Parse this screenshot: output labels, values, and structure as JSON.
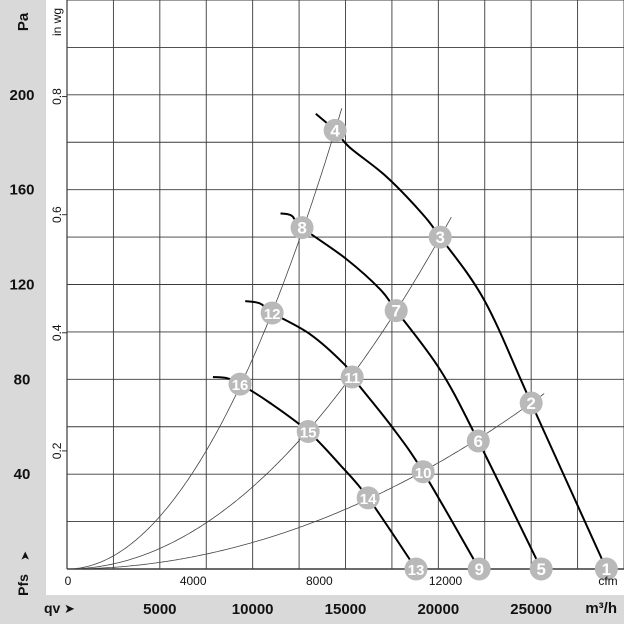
{
  "chart_data": {
    "type": "line",
    "title": "",
    "xlabel": "qv",
    "xunit": "m³/h",
    "ylabel": "Pfs",
    "yunit": "Pa",
    "secondary_x_unit": "cfm",
    "secondary_y_unit": "in wg",
    "xlim": [
      0,
      30000
    ],
    "ylim": [
      0,
      240
    ],
    "grid": true,
    "x_ticks": [
      5000,
      10000,
      15000,
      20000,
      25000
    ],
    "x_tick_labels": [
      "5000",
      "10000",
      "15000",
      "20000",
      "25000"
    ],
    "y_ticks": [
      40,
      80,
      120,
      160,
      200
    ],
    "y_tick_labels": [
      "40",
      "80",
      "120",
      "160",
      "200"
    ],
    "cfm_ticks": [
      0,
      4000,
      8000,
      12000
    ],
    "cfm_tick_labels": [
      "0",
      "4000",
      "8000",
      "12000"
    ],
    "inwg_ticks": [
      0.2,
      0.4,
      0.6,
      0.8
    ],
    "inwg_tick_labels": [
      "0.2",
      "0.4",
      "0.6",
      "0.8"
    ],
    "fan_curves": [
      {
        "name": "curve-1",
        "points": [
          [
            13400,
            192
          ],
          [
            14440,
            185
          ],
          [
            15200,
            178
          ],
          [
            17130,
            166
          ],
          [
            19000,
            151
          ],
          [
            20100,
            140
          ],
          [
            22500,
            113
          ],
          [
            25000,
            70
          ],
          [
            29050,
            0
          ]
        ]
      },
      {
        "name": "curve-2",
        "points": [
          [
            11500,
            150
          ],
          [
            12100,
            149
          ],
          [
            12660,
            144
          ],
          [
            15000,
            131
          ],
          [
            16860,
            118
          ],
          [
            17730,
            109
          ],
          [
            20100,
            84
          ],
          [
            22150,
            54
          ],
          [
            25540,
            0
          ]
        ]
      },
      {
        "name": "curve-3",
        "points": [
          [
            9600,
            113
          ],
          [
            10400,
            112
          ],
          [
            11050,
            108
          ],
          [
            13100,
            99
          ],
          [
            14980,
            86
          ],
          [
            15360,
            81
          ],
          [
            17400,
            61
          ],
          [
            19180,
            41
          ],
          [
            22200,
            0
          ]
        ]
      },
      {
        "name": "curve-4",
        "points": [
          [
            7860,
            81
          ],
          [
            8600,
            80.5
          ],
          [
            9320,
            78
          ],
          [
            10940,
            70
          ],
          [
            12990,
            58
          ],
          [
            14700,
            44
          ],
          [
            16220,
            30
          ],
          [
            18800,
            0
          ]
        ]
      }
    ],
    "system_curves": [
      {
        "name": "system-steep",
        "through": [
          14440,
          185
        ]
      },
      {
        "name": "system-mid",
        "through": [
          20100,
          140
        ]
      },
      {
        "name": "system-flat",
        "through": [
          25000,
          70
        ]
      }
    ],
    "operating_points": [
      {
        "label": "1",
        "q": 29050,
        "p": 0
      },
      {
        "label": "2",
        "q": 25000,
        "p": 70
      },
      {
        "label": "3",
        "q": 20100,
        "p": 140
      },
      {
        "label": "4",
        "q": 14440,
        "p": 185
      },
      {
        "label": "5",
        "q": 25540,
        "p": 0
      },
      {
        "label": "6",
        "q": 22150,
        "p": 54
      },
      {
        "label": "7",
        "q": 17730,
        "p": 109
      },
      {
        "label": "8",
        "q": 12660,
        "p": 144
      },
      {
        "label": "9",
        "q": 22200,
        "p": 0
      },
      {
        "label": "10",
        "q": 19180,
        "p": 41
      },
      {
        "label": "11",
        "q": 15360,
        "p": 81
      },
      {
        "label": "12",
        "q": 11050,
        "p": 108
      },
      {
        "label": "13",
        "q": 18800,
        "p": 0
      },
      {
        "label": "14",
        "q": 16220,
        "p": 30
      },
      {
        "label": "15",
        "q": 12990,
        "p": 58
      },
      {
        "label": "16",
        "q": 9320,
        "p": 78
      }
    ],
    "colors": {
      "grid": "#3a3a3a",
      "curve": "#000000",
      "marker": "#b9b9b9",
      "band": "#d9d9d9"
    }
  },
  "labels": {
    "pa_unit": "Pa",
    "inwg_unit": "in wg",
    "pfs": "Pfs",
    "qv": "qv",
    "m3h_unit": "m³/h",
    "cfm_unit": "cfm",
    "arrow": "➤"
  }
}
